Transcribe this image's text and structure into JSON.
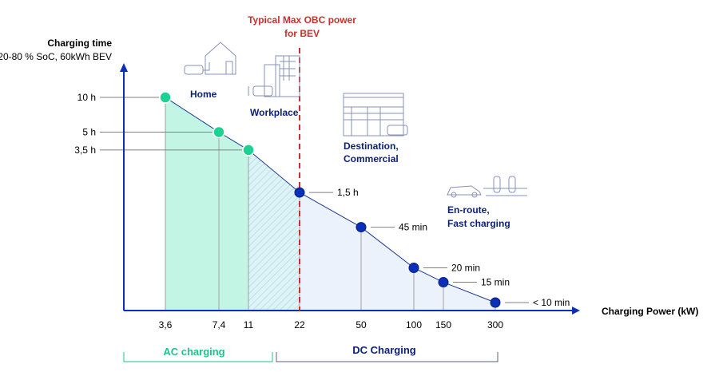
{
  "chart_data": {
    "type": "line",
    "title": "Typical Max OBC power for BEV",
    "title_lines": [
      "Typical Max OBC power",
      "for BEV"
    ],
    "ylabel": "Charging time",
    "ylabel_sub": "20-80 % SoC, 60kWh BEV",
    "xlabel": "Charging Power (kW)",
    "categories": [
      "3,6",
      "7,4",
      "11",
      "22",
      "50",
      "100",
      "150",
      "300"
    ],
    "x": [
      3.6,
      7.4,
      11,
      22,
      50,
      100,
      150,
      300
    ],
    "time_labels": [
      "10 h",
      "5 h",
      "3,5 h",
      "1,5 h",
      "45 min",
      "20 min",
      "15 min",
      "< 10 min"
    ],
    "time_minutes": [
      600,
      300,
      210,
      90,
      45,
      20,
      15,
      10
    ],
    "point_types": [
      "ac",
      "ac",
      "ac",
      "dc",
      "dc",
      "dc",
      "dc",
      "dc"
    ],
    "obc_limit_kw": 22,
    "groups": [
      {
        "label": "AC charging",
        "color": "#1dc48a"
      },
      {
        "label": "DC Charging",
        "color": "#0a1f7a"
      }
    ],
    "use_cases": [
      "Home",
      "Workplace",
      "Destination, Commercial",
      "En-route, Fast charging"
    ],
    "colors": {
      "ac": "#1dd193",
      "ac_fill": "#c3f5e4",
      "dc": "#0a2fb8",
      "dc_fill": "#ebf2fc",
      "limit": "#c8302c",
      "axis": "#0a2fb8",
      "label": "#0a1f7a"
    }
  }
}
